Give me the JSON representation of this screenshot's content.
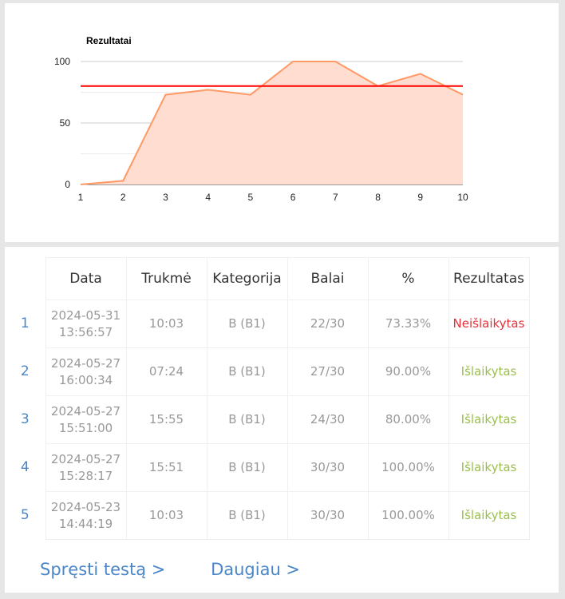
{
  "chart_data": {
    "type": "area",
    "title": "Rezultatai",
    "x": [
      1,
      2,
      3,
      4,
      5,
      6,
      7,
      8,
      9,
      10
    ],
    "values": [
      0,
      3,
      73,
      77,
      73,
      100,
      100,
      80,
      90,
      73
    ],
    "threshold": 80,
    "ylim": [
      0,
      100
    ],
    "yticks": [
      0,
      50,
      100
    ],
    "grid": true,
    "colors": {
      "series": "#ff9966",
      "fill": "#ffddd0",
      "threshold": "#ff0000"
    }
  },
  "table": {
    "headers": [
      "Data",
      "Trukmė",
      "Kategorija",
      "Balai",
      "%",
      "Rezultatas"
    ],
    "rows": [
      {
        "n": "1",
        "date": "2024-05-31",
        "time": "13:56:57",
        "duration": "10:03",
        "category": "B (B1)",
        "score": "22/30",
        "percent": "73.33%",
        "result": "Neišlaikytas",
        "passed": false
      },
      {
        "n": "2",
        "date": "2024-05-27",
        "time": "16:00:34",
        "duration": "07:24",
        "category": "B (B1)",
        "score": "27/30",
        "percent": "90.00%",
        "result": "Išlaikytas",
        "passed": true
      },
      {
        "n": "3",
        "date": "2024-05-27",
        "time": "15:51:00",
        "duration": "15:55",
        "category": "B (B1)",
        "score": "24/30",
        "percent": "80.00%",
        "result": "Išlaikytas",
        "passed": true
      },
      {
        "n": "4",
        "date": "2024-05-27",
        "time": "15:28:17",
        "duration": "15:51",
        "category": "B (B1)",
        "score": "30/30",
        "percent": "100.00%",
        "result": "Išlaikytas",
        "passed": true
      },
      {
        "n": "5",
        "date": "2024-05-23",
        "time": "14:44:19",
        "duration": "10:03",
        "category": "B (B1)",
        "score": "30/30",
        "percent": "100.00%",
        "result": "Išlaikytas",
        "passed": true
      }
    ]
  },
  "links": {
    "take_test": "Spręsti testą >",
    "more": "Daugiau >"
  }
}
